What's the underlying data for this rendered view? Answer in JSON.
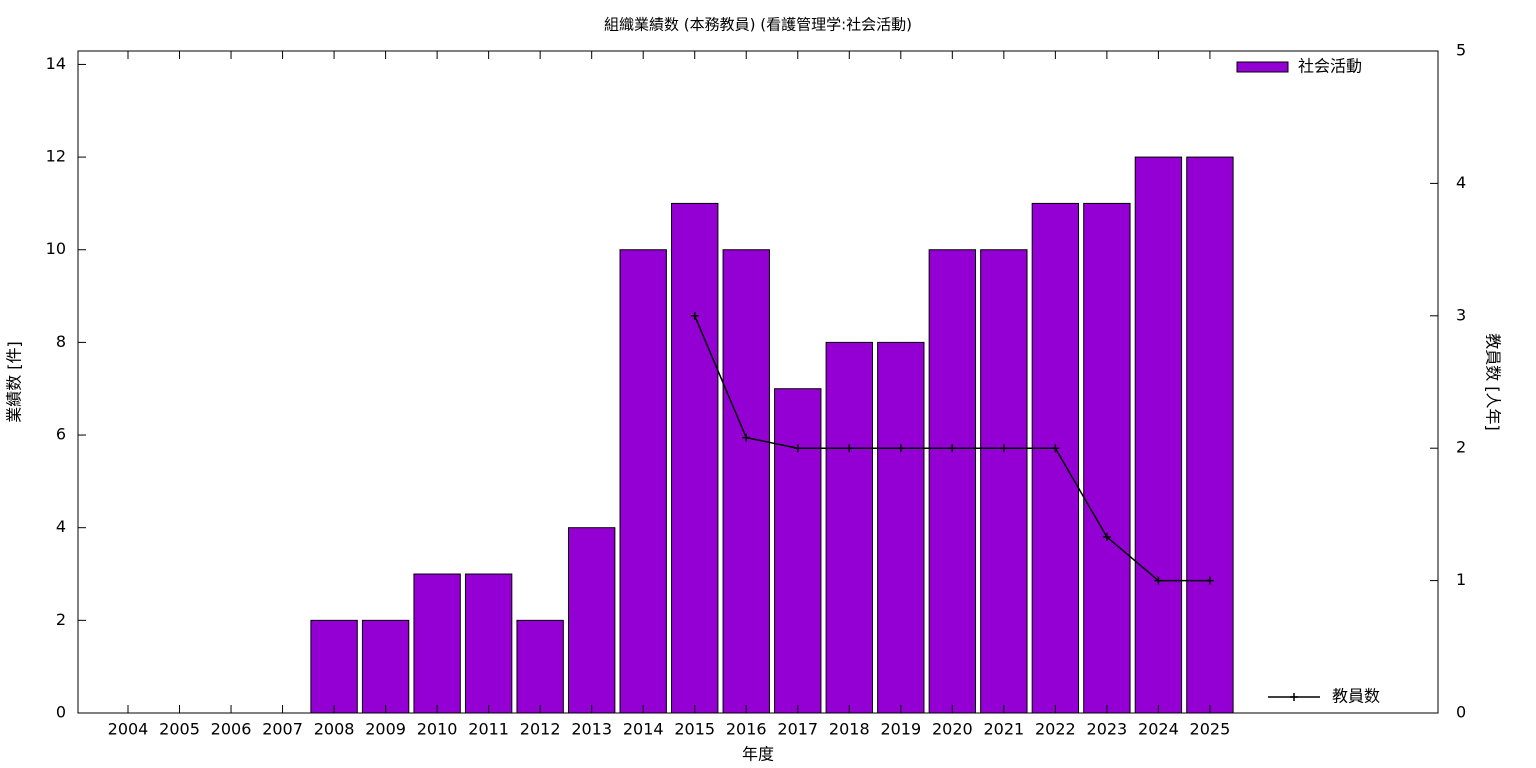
{
  "chart_data": {
    "type": "bar_line",
    "title": "組織業績数 (本務教員) (看護管理学:社会活動)",
    "x_label": "年度",
    "y_label": "業績数 [件]",
    "y2_label": "教員数 [人年]",
    "categories": [
      "2004",
      "2005",
      "2006",
      "2007",
      "2008",
      "2009",
      "2010",
      "2011",
      "2012",
      "2013",
      "2014",
      "2015",
      "2016",
      "2017",
      "2018",
      "2019",
      "2020",
      "2021",
      "2022",
      "2023",
      "2024",
      "2025"
    ],
    "series": [
      {
        "name": "社会活動",
        "type": "bar",
        "color": "#9400d3",
        "values": [
          0,
          0,
          0,
          0,
          2,
          2,
          3,
          3,
          2,
          4,
          10,
          11,
          10,
          7,
          8,
          8,
          10,
          10,
          11,
          11,
          12,
          12
        ]
      },
      {
        "name": "教員数",
        "type": "line",
        "color": "#000000",
        "axis": "y2",
        "values": [
          null,
          null,
          null,
          null,
          null,
          null,
          null,
          null,
          null,
          null,
          null,
          3,
          2.08,
          2,
          2,
          2,
          2,
          2,
          2,
          1.33,
          1,
          1
        ]
      }
    ],
    "ylim": [
      0,
      14.29
    ],
    "yticks": [
      0,
      2,
      4,
      6,
      8,
      10,
      12,
      14
    ],
    "y2lim": [
      0,
      5
    ],
    "y2ticks": [
      0,
      1,
      2,
      3,
      4,
      5
    ]
  }
}
